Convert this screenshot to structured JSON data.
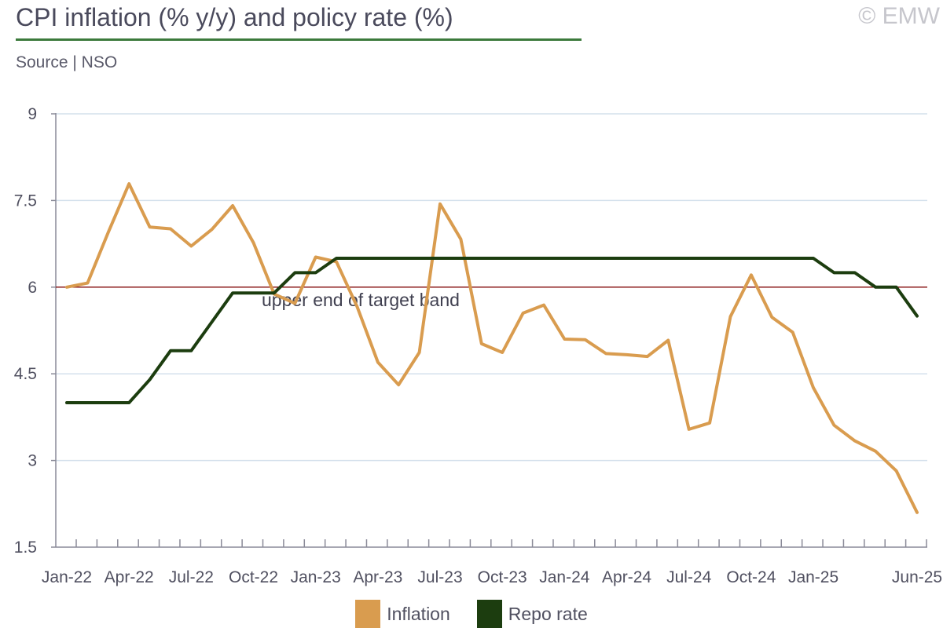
{
  "header": {
    "title": "CPI inflation (% y/y) and policy rate (%)",
    "source": "Source | NSO",
    "copyright": "© EMW"
  },
  "colors": {
    "inflation": "#d99c4f",
    "repo": "#1c3d0f",
    "target_line": "#8b1a1a",
    "grid": "#d4e0ec",
    "axis": "#8a8a98",
    "title_rule": "#3c7a3c"
  },
  "chart_data": {
    "type": "line",
    "title": "CPI inflation (% y/y) and policy rate (%)",
    "xlabel": "",
    "ylabel": "",
    "ylim": [
      1.5,
      9
    ],
    "yticks": [
      1.5,
      3,
      4.5,
      6,
      7.5,
      9
    ],
    "ytick_labels": [
      "1.5",
      "3",
      "4.5",
      "6",
      "7.5",
      "9"
    ],
    "grid": true,
    "legend_position": "bottom",
    "x": [
      "Jan-22",
      "Feb-22",
      "Mar-22",
      "Apr-22",
      "May-22",
      "Jun-22",
      "Jul-22",
      "Aug-22",
      "Sep-22",
      "Oct-22",
      "Nov-22",
      "Dec-22",
      "Jan-23",
      "Feb-23",
      "Mar-23",
      "Apr-23",
      "May-23",
      "Jun-23",
      "Jul-23",
      "Aug-23",
      "Sep-23",
      "Oct-23",
      "Nov-23",
      "Dec-23",
      "Jan-24",
      "Feb-24",
      "Mar-24",
      "Apr-24",
      "May-24",
      "Jun-24",
      "Jul-24",
      "Aug-24",
      "Sep-24",
      "Oct-24",
      "Nov-24",
      "Dec-24",
      "Jan-25",
      "Feb-25",
      "Mar-25",
      "Apr-25",
      "May-25",
      "Jun-25"
    ],
    "x_tick_labels": [
      {
        "index": 0,
        "label": "Jan-22"
      },
      {
        "index": 3,
        "label": "Apr-22"
      },
      {
        "index": 6,
        "label": "Jul-22"
      },
      {
        "index": 9,
        "label": "Oct-22"
      },
      {
        "index": 12,
        "label": "Jan-23"
      },
      {
        "index": 15,
        "label": "Apr-23"
      },
      {
        "index": 18,
        "label": "Jul-23"
      },
      {
        "index": 21,
        "label": "Oct-23"
      },
      {
        "index": 24,
        "label": "Jan-24"
      },
      {
        "index": 27,
        "label": "Apr-24"
      },
      {
        "index": 30,
        "label": "Jul-24"
      },
      {
        "index": 33,
        "label": "Oct-24"
      },
      {
        "index": 36,
        "label": "Jan-25"
      },
      {
        "index": 41,
        "label": "Jun-25"
      }
    ],
    "series": [
      {
        "name": "Inflation",
        "values": [
          6.0,
          6.07,
          6.95,
          7.79,
          7.04,
          7.01,
          6.71,
          7.0,
          7.41,
          6.77,
          5.88,
          5.72,
          6.52,
          6.44,
          5.66,
          4.7,
          4.31,
          4.87,
          7.44,
          6.83,
          5.02,
          4.87,
          5.55,
          5.69,
          5.1,
          5.09,
          4.85,
          4.83,
          4.8,
          5.08,
          3.54,
          3.65,
          5.49,
          6.21,
          5.48,
          5.22,
          4.26,
          3.61,
          3.34,
          3.16,
          2.82,
          2.1
        ]
      },
      {
        "name": "Repo rate",
        "values": [
          4.0,
          4.0,
          4.0,
          4.0,
          4.4,
          4.9,
          4.9,
          5.4,
          5.9,
          5.9,
          5.9,
          6.25,
          6.25,
          6.5,
          6.5,
          6.5,
          6.5,
          6.5,
          6.5,
          6.5,
          6.5,
          6.5,
          6.5,
          6.5,
          6.5,
          6.5,
          6.5,
          6.5,
          6.5,
          6.5,
          6.5,
          6.5,
          6.5,
          6.5,
          6.5,
          6.5,
          6.5,
          6.25,
          6.25,
          6.0,
          6.0,
          5.5
        ]
      }
    ],
    "reference_line": {
      "y": 6,
      "label": "upper end of target band"
    }
  },
  "legend": {
    "items": [
      {
        "label": "Inflation"
      },
      {
        "label": "Repo rate"
      }
    ]
  }
}
